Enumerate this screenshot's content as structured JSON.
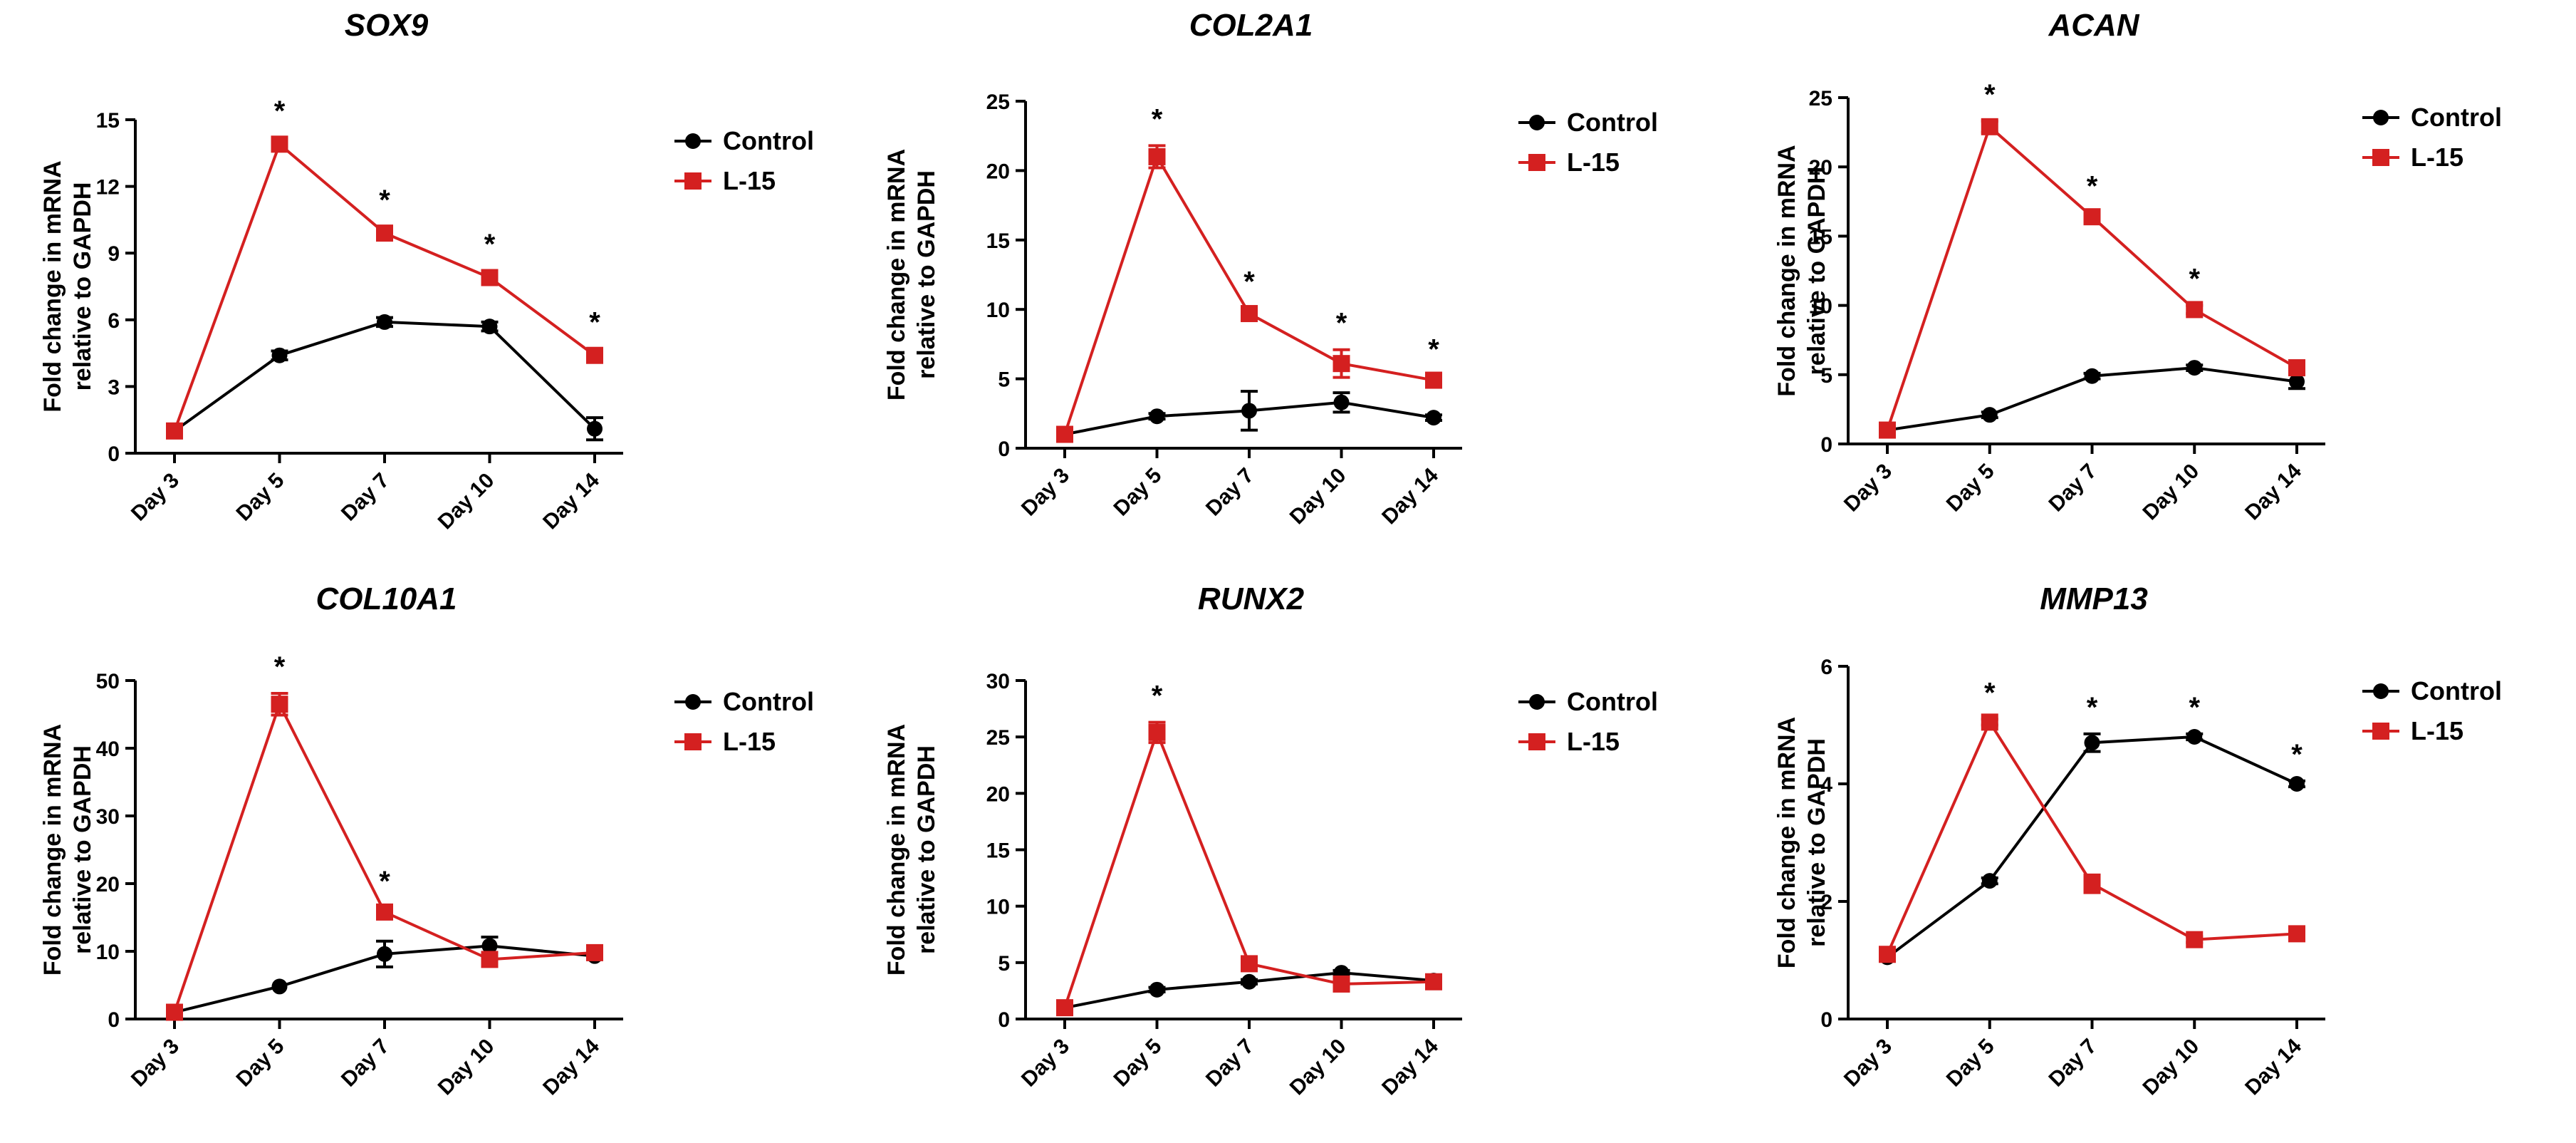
{
  "figure": {
    "legend_labels": [
      "Control",
      "L-15"
    ],
    "colors": {
      "control": "#000000",
      "treatment": "#d42020"
    }
  },
  "chart_data": [
    {
      "type": "line",
      "title": "SOX9",
      "ylabel": [
        "Fold change in mRNA",
        "relative to GAPDH"
      ],
      "categories": [
        "Day 3",
        "Day 5",
        "Day 7",
        "Day 10",
        "Day 14"
      ],
      "ylim": [
        0,
        15
      ],
      "yticks": [
        0,
        3,
        6,
        9,
        12,
        15
      ],
      "series": [
        {
          "name": "Control",
          "values": [
            1.0,
            4.4,
            5.9,
            5.7,
            1.1
          ],
          "errors": [
            0.1,
            0.2,
            0.2,
            0.2,
            0.5
          ]
        },
        {
          "name": "L-15",
          "values": [
            1.0,
            13.9,
            9.9,
            7.9,
            4.4
          ],
          "errors": [
            0.1,
            0.3,
            0.3,
            0.3,
            0.3
          ]
        }
      ],
      "significance": [
        "",
        "*",
        "*",
        "*",
        "*"
      ]
    },
    {
      "type": "line",
      "title": "COL2A1",
      "ylabel": [
        "Fold change in mRNA",
        "relative to GAPDH"
      ],
      "categories": [
        "Day 3",
        "Day 5",
        "Day 7",
        "Day 10",
        "Day 14"
      ],
      "ylim": [
        0,
        25
      ],
      "yticks": [
        0,
        5,
        10,
        15,
        20,
        25
      ],
      "series": [
        {
          "name": "Control",
          "values": [
            1.0,
            2.3,
            2.7,
            3.3,
            2.2
          ],
          "errors": [
            0.1,
            0.2,
            1.4,
            0.7,
            0.2
          ]
        },
        {
          "name": "L-15",
          "values": [
            1.0,
            21.0,
            9.7,
            6.1,
            4.9
          ],
          "errors": [
            0.1,
            0.8,
            0.4,
            1.0,
            0.3
          ]
        }
      ],
      "significance": [
        "",
        "*",
        "*",
        "*",
        "*"
      ]
    },
    {
      "type": "line",
      "title": "ACAN",
      "ylabel": [
        "Fold change in mRNA",
        "relative to GAPDH"
      ],
      "categories": [
        "Day 3",
        "Day 5",
        "Day 7",
        "Day 10",
        "Day 14"
      ],
      "ylim": [
        0,
        25
      ],
      "yticks": [
        0,
        5,
        10,
        15,
        20,
        25
      ],
      "series": [
        {
          "name": "Control",
          "values": [
            1.0,
            2.1,
            4.9,
            5.5,
            4.5
          ],
          "errors": [
            0.1,
            0.2,
            0.2,
            0.2,
            0.5
          ]
        },
        {
          "name": "L-15",
          "values": [
            1.0,
            22.9,
            16.4,
            9.7,
            5.5
          ],
          "errors": [
            0.1,
            0.4,
            0.3,
            0.3,
            0.4
          ]
        }
      ],
      "significance": [
        "",
        "*",
        "*",
        "*",
        ""
      ]
    },
    {
      "type": "line",
      "title": "COL10A1",
      "ylabel": [
        "Fold change in mRNA",
        "relative to GAPDH"
      ],
      "categories": [
        "Day 3",
        "Day 5",
        "Day 7",
        "Day 10",
        "Day 14"
      ],
      "ylim": [
        0,
        50
      ],
      "yticks": [
        0,
        10,
        20,
        30,
        40,
        50
      ],
      "series": [
        {
          "name": "Control",
          "values": [
            1.0,
            4.8,
            9.6,
            10.8,
            9.3
          ],
          "errors": [
            0.1,
            0.3,
            1.9,
            1.3,
            0.4
          ]
        },
        {
          "name": "L-15",
          "values": [
            1.0,
            46.5,
            15.8,
            8.8,
            9.8
          ],
          "errors": [
            0.1,
            1.6,
            0.6,
            0.6,
            0.5
          ]
        }
      ],
      "significance": [
        "",
        "*",
        "*",
        "",
        ""
      ]
    },
    {
      "type": "line",
      "title": "RUNX2",
      "ylabel": [
        "Fold change in mRNA",
        "relative to GAPDH"
      ],
      "categories": [
        "Day 3",
        "Day 5",
        "Day 7",
        "Day 10",
        "Day 14"
      ],
      "ylim": [
        0,
        30
      ],
      "yticks": [
        0,
        5,
        10,
        15,
        20,
        25,
        30
      ],
      "series": [
        {
          "name": "Control",
          "values": [
            1.0,
            2.6,
            3.3,
            4.1,
            3.4
          ],
          "errors": [
            0.1,
            0.2,
            0.2,
            0.2,
            0.2
          ]
        },
        {
          "name": "L-15",
          "values": [
            1.0,
            25.4,
            4.9,
            3.1,
            3.3
          ],
          "errors": [
            0.1,
            0.9,
            0.3,
            0.3,
            0.3
          ]
        }
      ],
      "significance": [
        "",
        "*",
        "",
        "",
        ""
      ]
    },
    {
      "type": "line",
      "title": "MMP13",
      "ylabel": [
        "Fold change in mRNA",
        "relative to GAPDH"
      ],
      "categories": [
        "Day 3",
        "Day 5",
        "Day 7",
        "Day 10",
        "Day 14"
      ],
      "ylim": [
        0,
        6
      ],
      "yticks": [
        0,
        2,
        4,
        6
      ],
      "series": [
        {
          "name": "Control",
          "values": [
            1.05,
            2.35,
            4.7,
            4.8,
            4.0
          ],
          "errors": [
            0.05,
            0.05,
            0.15,
            0.05,
            0.05
          ]
        },
        {
          "name": "L-15",
          "values": [
            1.1,
            5.05,
            2.3,
            1.35,
            1.45
          ],
          "errors": [
            0.05,
            0.05,
            0.15,
            0.05,
            0.05
          ]
        }
      ],
      "significance": [
        "",
        "*",
        "*",
        "*",
        "*"
      ]
    }
  ]
}
